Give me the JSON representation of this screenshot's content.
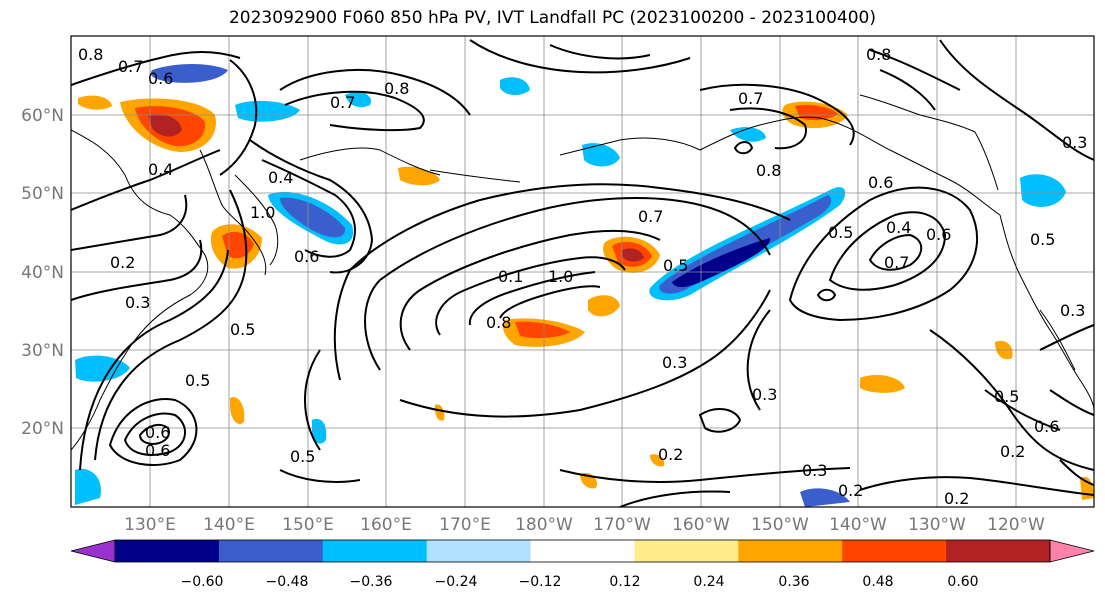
{
  "title": "2023092900 F060 850 hPa PV, IVT Landfall PC (2023100200 - 2023100400)",
  "map": {
    "lat_labels": [
      "60°N",
      "50°N",
      "40°N",
      "30°N",
      "20°N"
    ],
    "lon_labels": [
      "130°E",
      "140°E",
      "150°E",
      "160°E",
      "170°E",
      "180°W",
      "170°W",
      "160°W",
      "150°W",
      "140°W",
      "130°W",
      "120°W"
    ],
    "contour_labels": [
      "0.7",
      "0.8",
      "0.6",
      "0.4",
      "0.7",
      "0.8",
      "1.0",
      "0.4",
      "0.6",
      "0.2",
      "0.3",
      "0.5",
      "0.5",
      "0.6",
      "0.6",
      "0.5",
      "0.1",
      "1.0",
      "0.8",
      "0.7",
      "0.5",
      "0.3",
      "0.3",
      "0.2",
      "0.7",
      "0.8",
      "0.6",
      "0.5",
      "0.4",
      "0.7",
      "0.6",
      "0.8",
      "0.5",
      "0.3",
      "0.3",
      "0.2",
      "0.2",
      "0.5",
      "0.6",
      "0.2",
      "0.3"
    ]
  },
  "colorbar": {
    "tick_labels": [
      "−0.60",
      "−0.48",
      "−0.36",
      "−0.24",
      "−0.12",
      "0.12",
      "0.24",
      "0.36",
      "0.48",
      "0.60"
    ],
    "colors": [
      "#9932cc",
      "#00008b",
      "#3a5fcd",
      "#00bfff",
      "#b0e2ff",
      "#ffffff",
      "#ffec8b",
      "#ffa500",
      "#ff4500",
      "#b22222",
      "#ff82ab"
    ]
  }
}
